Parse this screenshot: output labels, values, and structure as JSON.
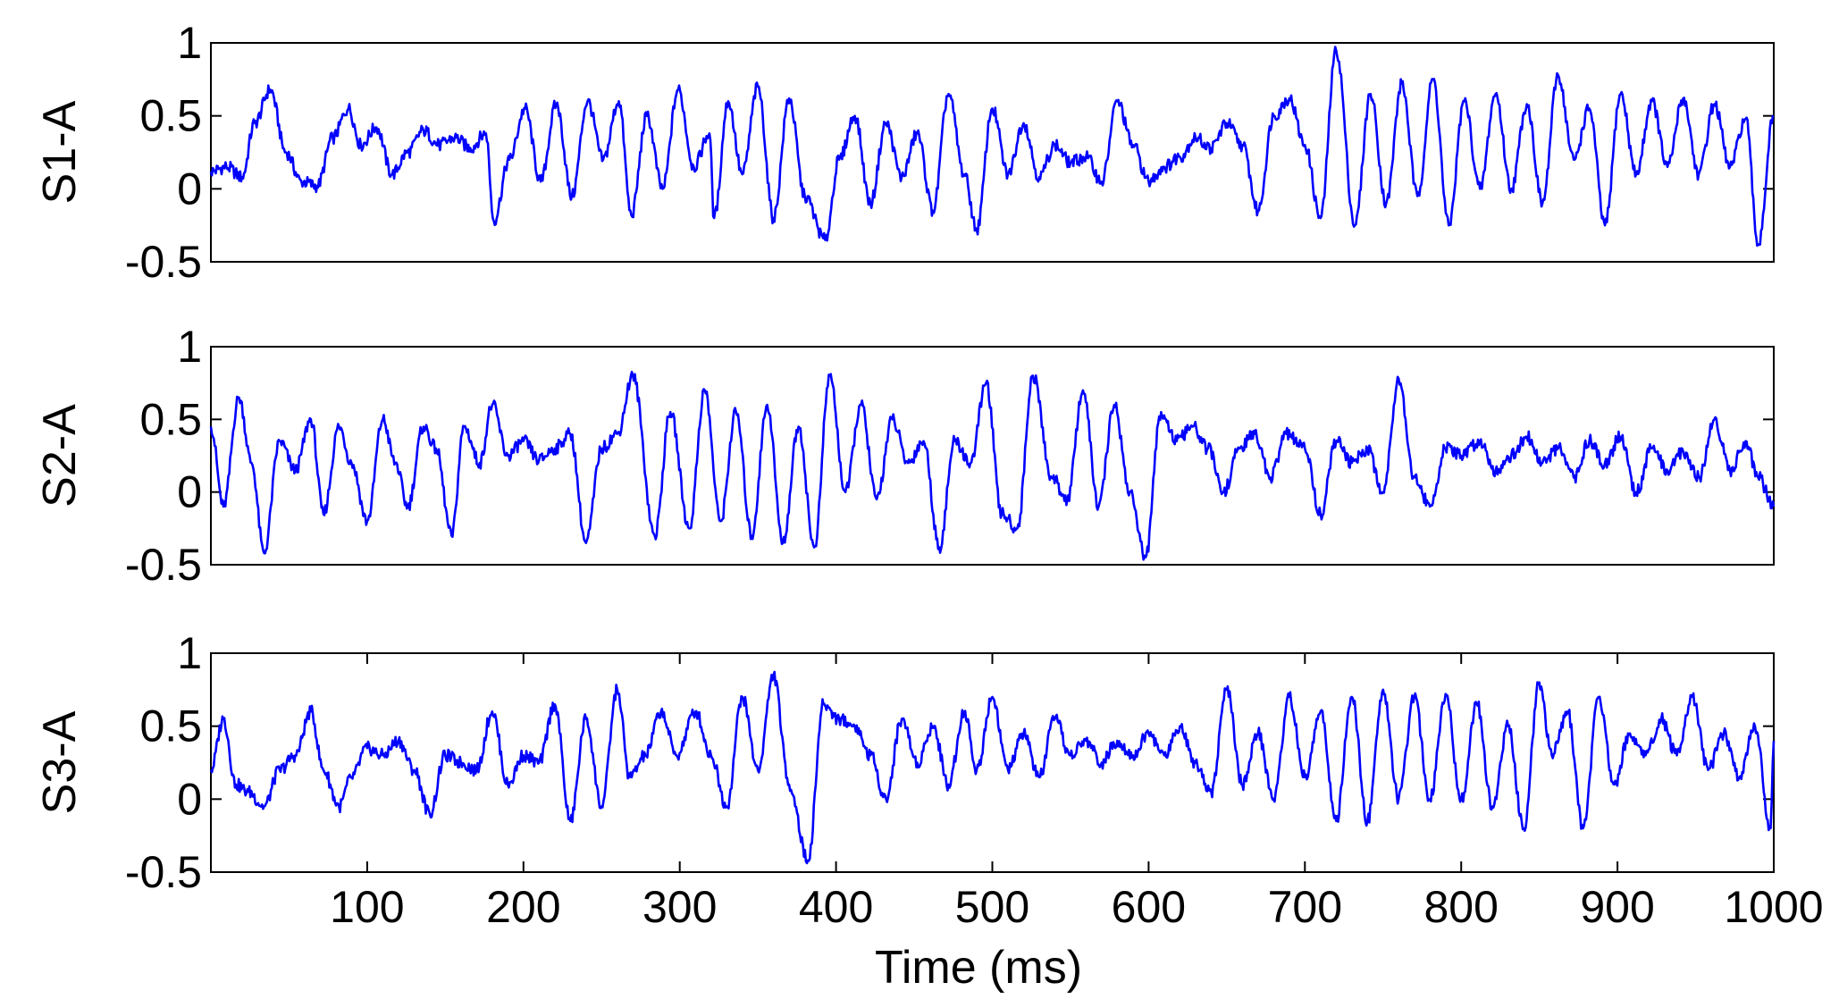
{
  "chart_data": [
    {
      "type": "line",
      "ylabel": "S1-A",
      "xlabel": "",
      "xlim": [
        0,
        1000
      ],
      "ylim": [
        -0.5,
        1
      ],
      "yticks": [
        "-0.5",
        "0",
        "0.5",
        "1"
      ],
      "xticks": [],
      "grid": false,
      "line_color": "#0000FF",
      "series": [
        {
          "x": [
            0,
            10,
            20,
            28,
            38,
            48,
            58,
            68,
            78,
            88,
            96,
            106,
            116,
            126,
            136,
            146,
            156,
            166,
            176,
            181,
            191,
            201,
            211,
            221,
            231,
            241,
            251,
            261,
            269,
            279,
            289,
            299,
            309,
            319,
            322,
            331,
            340,
            350,
            360,
            370,
            380,
            393,
            402,
            412,
            422,
            432,
            442,
            452,
            462,
            472,
            482,
            490,
            500,
            510,
            520,
            530,
            540,
            550,
            560,
            570,
            580,
            590,
            600,
            610,
            620,
            630,
            640,
            650,
            660,
            670,
            680,
            690,
            700,
            710,
            720,
            732,
            742,
            752,
            762,
            772,
            782,
            792,
            802,
            812,
            822,
            832,
            842,
            852,
            862,
            872,
            882,
            892,
            902,
            912,
            922,
            932,
            942,
            952,
            962,
            972,
            982,
            990,
            1000
          ],
          "y": [
            0.12,
            0.15,
            0.08,
            0.45,
            0.68,
            0.25,
            0.05,
            0.02,
            0.35,
            0.55,
            0.3,
            0.42,
            0.1,
            0.25,
            0.4,
            0.3,
            0.35,
            0.28,
            0.38,
            -0.22,
            0.2,
            0.55,
            0.05,
            0.58,
            -0.05,
            0.6,
            0.2,
            0.6,
            -0.18,
            0.5,
            0.0,
            0.68,
            0.15,
            0.38,
            -0.2,
            0.6,
            0.1,
            0.7,
            -0.2,
            0.62,
            -0.05,
            -0.35,
            0.2,
            0.5,
            -0.1,
            0.45,
            0.08,
            0.38,
            -0.15,
            0.65,
            0.1,
            -0.28,
            0.55,
            0.1,
            0.45,
            0.08,
            0.3,
            0.18,
            0.22,
            0.05,
            0.6,
            0.3,
            0.05,
            0.15,
            0.22,
            0.35,
            0.28,
            0.45,
            0.3,
            -0.15,
            0.5,
            0.62,
            0.3,
            -0.2,
            0.95,
            -0.25,
            0.65,
            -0.1,
            0.72,
            -0.05,
            0.75,
            -0.25,
            0.6,
            0.0,
            0.65,
            0.0,
            0.58,
            -0.1,
            0.78,
            0.2,
            0.55,
            -0.25,
            0.65,
            0.1,
            0.6,
            0.15,
            0.62,
            0.1,
            0.58,
            0.15,
            0.48,
            -0.38,
            0.5
          ]
        }
      ]
    },
    {
      "type": "line",
      "ylabel": "S2-A",
      "xlabel": "",
      "xlim": [
        0,
        1000
      ],
      "ylim": [
        -0.5,
        1
      ],
      "yticks": [
        "-0.5",
        "0",
        "0.5",
        "1"
      ],
      "xticks": [],
      "grid": false,
      "line_color": "#0000FF",
      "series": [
        {
          "x": [
            0,
            8,
            18,
            26,
            34,
            44,
            54,
            64,
            72,
            82,
            90,
            100,
            110,
            118,
            126,
            136,
            144,
            154,
            162,
            172,
            180,
            190,
            200,
            210,
            220,
            230,
            240,
            250,
            260,
            270,
            284,
            294,
            306,
            316,
            326,
            336,
            346,
            356,
            366,
            376,
            386,
            396,
            406,
            416,
            426,
            436,
            446,
            456,
            466,
            476,
            486,
            496,
            506,
            516,
            526,
            538,
            548,
            558,
            568,
            578,
            588,
            598,
            608,
            618,
            628,
            638,
            648,
            658,
            668,
            678,
            688,
            700,
            710,
            720,
            730,
            740,
            750,
            760,
            770,
            780,
            790,
            800,
            812,
            822,
            832,
            842,
            852,
            862,
            872,
            882,
            892,
            902,
            912,
            922,
            932,
            942,
            952,
            962,
            972,
            982,
            990,
            1000
          ],
          "y": [
            0.45,
            -0.1,
            0.65,
            0.2,
            -0.42,
            0.35,
            0.15,
            0.5,
            -0.15,
            0.45,
            0.2,
            -0.2,
            0.5,
            0.2,
            -0.1,
            0.45,
            0.3,
            -0.3,
            0.45,
            0.2,
            0.6,
            0.25,
            0.35,
            0.22,
            0.3,
            0.4,
            -0.35,
            0.3,
            0.4,
            0.8,
            -0.3,
            0.55,
            -0.25,
            0.7,
            -0.2,
            0.55,
            -0.3,
            0.6,
            -0.35,
            0.45,
            -0.38,
            0.8,
            0.0,
            0.6,
            -0.05,
            0.5,
            0.2,
            0.35,
            -0.38,
            0.35,
            0.2,
            0.75,
            -0.15,
            -0.25,
            0.8,
            0.1,
            -0.05,
            0.7,
            -0.1,
            0.6,
            0.0,
            -0.45,
            0.55,
            0.35,
            0.45,
            0.3,
            0.0,
            0.3,
            0.4,
            0.1,
            0.4,
            0.3,
            -0.15,
            0.35,
            0.2,
            0.3,
            0.0,
            0.78,
            0.1,
            -0.1,
            0.3,
            0.25,
            0.35,
            0.15,
            0.25,
            0.38,
            0.2,
            0.3,
            0.1,
            0.35,
            0.2,
            0.38,
            0.0,
            0.3,
            0.15,
            0.28,
            0.1,
            0.5,
            0.15,
            0.35,
            0.1,
            -0.1
          ]
        }
      ]
    },
    {
      "type": "line",
      "ylabel": "S3-A",
      "xlabel": "Time (ms)",
      "xlim": [
        0,
        1000
      ],
      "ylim": [
        -0.5,
        1
      ],
      "yticks": [
        "-0.5",
        "0",
        "0.5",
        "1"
      ],
      "xticks": [
        "100",
        "200",
        "300",
        "400",
        "500",
        "600",
        "700",
        "800",
        "900",
        "1000"
      ],
      "grid": false,
      "line_color": "#0000FF",
      "series": [
        {
          "x": [
            0,
            8,
            16,
            24,
            34,
            44,
            54,
            64,
            72,
            82,
            90,
            100,
            110,
            120,
            130,
            140,
            150,
            160,
            170,
            180,
            190,
            200,
            210,
            220,
            230,
            240,
            250,
            260,
            268,
            278,
            288,
            298,
            310,
            320,
            330,
            340,
            350,
            360,
            370,
            382,
            392,
            402,
            412,
            422,
            432,
            442,
            452,
            462,
            472,
            482,
            490,
            500,
            510,
            520,
            530,
            540,
            550,
            560,
            570,
            580,
            590,
            600,
            610,
            620,
            630,
            640,
            650,
            660,
            670,
            680,
            690,
            700,
            710,
            720,
            730,
            740,
            750,
            760,
            770,
            780,
            790,
            800,
            810,
            820,
            830,
            840,
            850,
            858,
            868,
            878,
            888,
            898,
            908,
            918,
            928,
            938,
            948,
            958,
            968,
            978,
            988,
            998,
            1000
          ],
          "y": [
            0.2,
            0.55,
            0.1,
            0.05,
            -0.05,
            0.2,
            0.3,
            0.6,
            0.2,
            -0.05,
            0.15,
            0.35,
            0.3,
            0.4,
            0.2,
            -0.1,
            0.3,
            0.25,
            0.2,
            0.6,
            0.1,
            0.3,
            0.25,
            0.65,
            -0.15,
            0.55,
            -0.05,
            0.75,
            0.15,
            0.3,
            0.6,
            0.3,
            0.6,
            0.3,
            -0.05,
            0.7,
            0.2,
            0.85,
            0.1,
            -0.42,
            0.65,
            0.55,
            0.5,
            0.3,
            0.0,
            0.55,
            0.25,
            0.5,
            0.1,
            0.6,
            0.2,
            0.7,
            0.2,
            0.45,
            0.15,
            0.55,
            0.3,
            0.4,
            0.25,
            0.4,
            0.3,
            0.45,
            0.3,
            0.5,
            0.25,
            0.05,
            0.75,
            0.1,
            0.45,
            0.0,
            0.7,
            0.15,
            0.6,
            -0.15,
            0.7,
            -0.15,
            0.75,
            0.0,
            0.7,
            0.0,
            0.72,
            0.0,
            0.65,
            -0.05,
            0.5,
            -0.2,
            0.8,
            0.3,
            0.6,
            -0.2,
            0.7,
            0.1,
            0.45,
            0.3,
            0.55,
            0.3,
            0.7,
            0.2,
            0.45,
            0.15,
            0.5,
            -0.2,
            0.4
          ]
        }
      ]
    }
  ]
}
